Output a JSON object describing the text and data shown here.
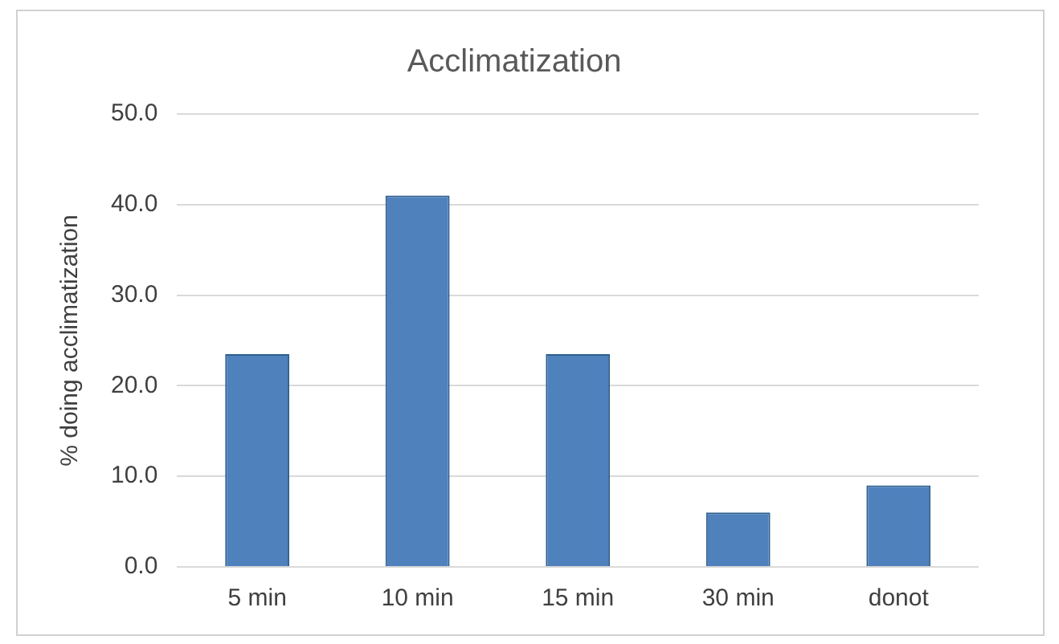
{
  "chart_data": {
    "type": "bar",
    "title": "Acclimatization",
    "ylabel": "% doing acclimatization",
    "categories": [
      "5 min",
      "10 min",
      "15 min",
      "30 min",
      "donot"
    ],
    "values": [
      23.5,
      41,
      23.5,
      6,
      9
    ],
    "color": "#4f81bd",
    "ylim": [
      0,
      50
    ],
    "yticks": [
      {
        "value": 0,
        "label": "0.0"
      },
      {
        "value": 10,
        "label": "10.0"
      },
      {
        "value": 20,
        "label": "20.0"
      },
      {
        "value": 30,
        "label": "30.0"
      },
      {
        "value": 40,
        "label": "40.0"
      },
      {
        "value": 50,
        "label": "50.0"
      }
    ],
    "grid": "y"
  }
}
